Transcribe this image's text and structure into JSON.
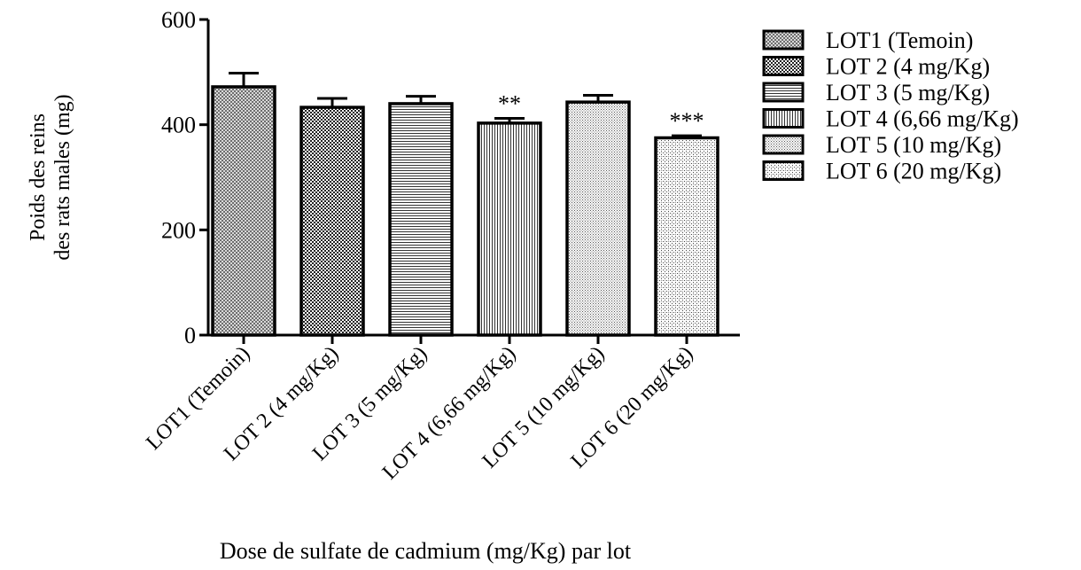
{
  "chart_data": {
    "type": "bar",
    "categories": [
      "LOT1 (Temoin)",
      "LOT 2 (4 mg/Kg)",
      "LOT 3 (5 mg/Kg)",
      "LOT 4 (6,66 mg/Kg)",
      "LOT 5 (10 mg/Kg)",
      "LOT 6 (20 mg/Kg)"
    ],
    "values": [
      472,
      433,
      440,
      403,
      443,
      375
    ],
    "error": [
      26,
      17,
      14,
      9,
      13,
      4
    ],
    "significance": [
      "",
      "",
      "",
      "**",
      "",
      "***"
    ],
    "ylim": [
      0,
      600
    ],
    "yticks": [
      0,
      200,
      400,
      600
    ],
    "ylabel_line1": "Poids des reins",
    "ylabel_line2": "des rats males  (mg)",
    "xlabel": "Dose de sulfate de cadmium (mg/Kg) par lot",
    "legend": {
      "placement": "right",
      "entries": [
        "LOT1 (Temoin)",
        "LOT 2 (4 mg/Kg)",
        "LOT 3 (5 mg/Kg)",
        "LOT 4 (6,66 mg/Kg)",
        "LOT 5 (10 mg/Kg)",
        "LOT 6 (20 mg/Kg)"
      ]
    },
    "patterns": [
      "dense-dots-dark",
      "dense-dots",
      "horizontal-lines",
      "vertical-lines",
      "fine-dots",
      "fine-dots-light"
    ],
    "grid": false
  }
}
